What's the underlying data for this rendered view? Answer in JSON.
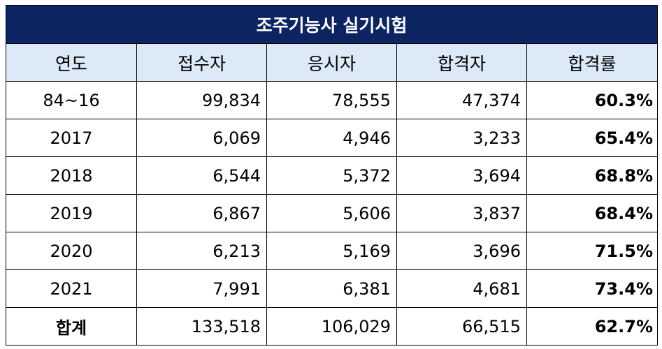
{
  "chart_data": {
    "type": "table",
    "title": "조주기능사 실기시험",
    "columns": [
      "연도",
      "접수자",
      "응시자",
      "합격자",
      "합격률"
    ],
    "rows": [
      [
        "84~16",
        "99,834",
        "78,555",
        "47,374",
        "60.3%"
      ],
      [
        "2017",
        "6,069",
        "4,946",
        "3,233",
        "65.4%"
      ],
      [
        "2018",
        "6,544",
        "5,372",
        "3,694",
        "68.8%"
      ],
      [
        "2019",
        "6,867",
        "5,606",
        "3,837",
        "68.4%"
      ],
      [
        "2020",
        "6,213",
        "5,169",
        "3,696",
        "71.5%"
      ],
      [
        "2021",
        "7,991",
        "6,381",
        "4,681",
        "73.4%"
      ]
    ],
    "total": [
      "합계",
      "133,518",
      "106,029",
      "66,515",
      "62.7%"
    ]
  },
  "colors": {
    "title_background": "#0d2463",
    "header_background": "#dce9f6"
  }
}
